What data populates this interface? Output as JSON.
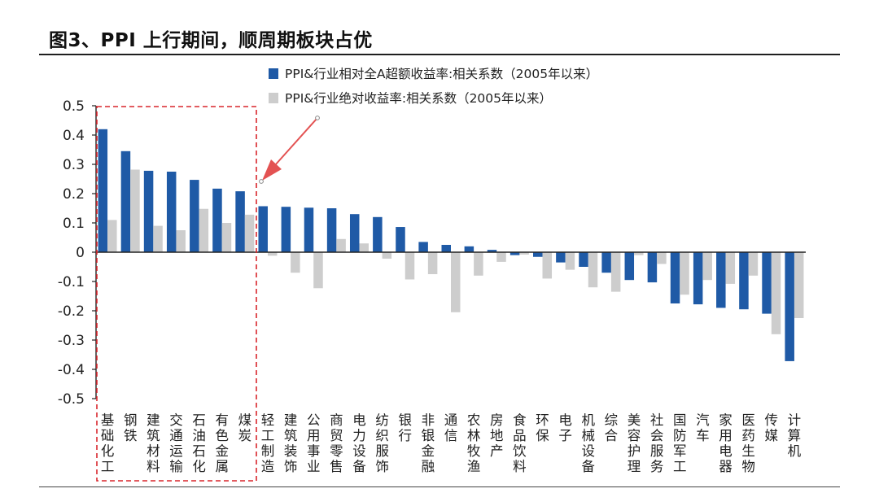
{
  "page": {
    "title": "图3、PPI 上行期间，顺周期板块占优"
  },
  "chart_data": {
    "type": "bar",
    "title": "",
    "xlabel": "",
    "ylabel": "",
    "ylim": [
      -0.5,
      0.5
    ],
    "yticks": [
      "0.5",
      "0.4",
      "0.3",
      "0.2",
      "0.1",
      "0",
      "-0.1",
      "-0.2",
      "-0.3",
      "-0.4",
      "-0.5"
    ],
    "legend_position": "top",
    "highlight_box": "前7个行业（基础化工至煤炭）",
    "categories": [
      "基础化工",
      "钢铁",
      "建筑材料",
      "交通运输",
      "石油石化",
      "有色金属",
      "煤炭",
      "轻工制造",
      "建筑装饰",
      "公用事业",
      "商贸零售",
      "电力设备",
      "纺织服饰",
      "银行",
      "非银金融",
      "通信",
      "农林牧渔",
      "房地产",
      "食品饮料",
      "环保",
      "电子",
      "机械设备",
      "综合",
      "美容护理",
      "社会服务",
      "国防军工",
      "汽车",
      "家用电器",
      "医药生物",
      "传媒",
      "计算机"
    ],
    "series": [
      {
        "name": "PPI&行业相对全A超额收益率:相关系数（2005年以来）",
        "color": "#1f5aa6",
        "values": [
          0.42,
          0.345,
          0.278,
          0.275,
          0.247,
          0.217,
          0.208,
          0.157,
          0.155,
          0.152,
          0.15,
          0.13,
          0.12,
          0.086,
          0.035,
          0.025,
          0.02,
          0.008,
          -0.01,
          -0.016,
          -0.035,
          -0.05,
          -0.07,
          -0.095,
          -0.103,
          -0.175,
          -0.178,
          -0.19,
          -0.195,
          -0.21,
          -0.372
        ]
      },
      {
        "name": "PPI&行业绝对收益率:相关系数（2005年以来）",
        "color": "#cdcdcd",
        "values": [
          0.11,
          0.282,
          0.09,
          0.075,
          0.148,
          0.1,
          0.128,
          -0.012,
          -0.07,
          -0.123,
          0.045,
          0.03,
          -0.022,
          -0.093,
          -0.075,
          -0.205,
          -0.08,
          -0.033,
          -0.008,
          -0.09,
          -0.06,
          -0.12,
          -0.135,
          -0.01,
          -0.04,
          -0.145,
          -0.095,
          -0.108,
          -0.08,
          -0.28,
          -0.225
        ]
      }
    ]
  }
}
